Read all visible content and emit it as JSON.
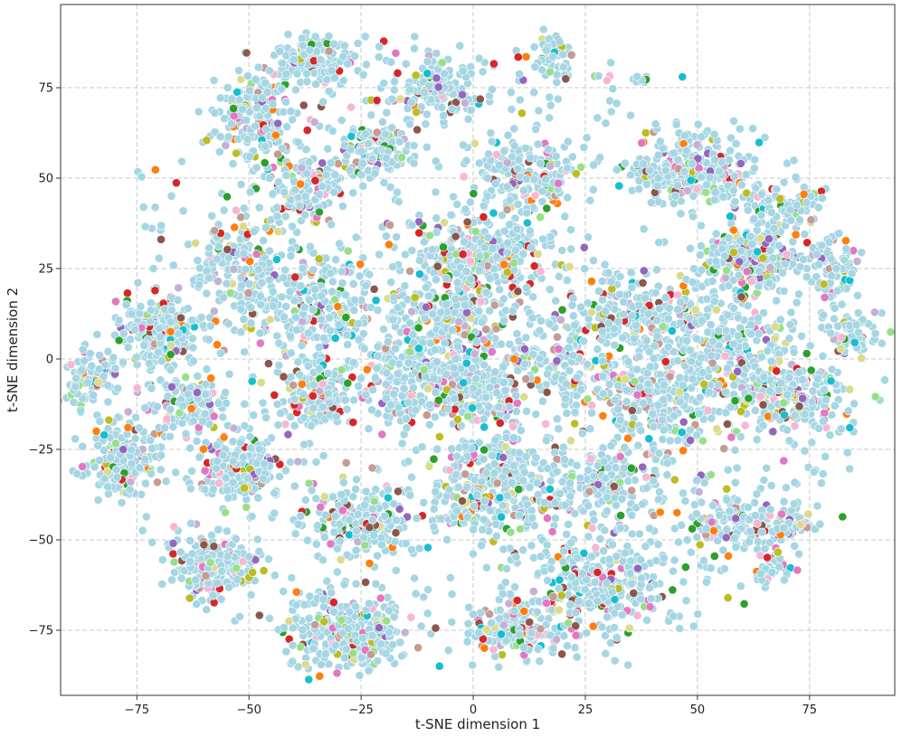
{
  "chart_data": {
    "type": "scatter",
    "title": "",
    "xlabel": "t-SNE dimension 1",
    "ylabel": "t-SNE dimension 2",
    "xlim": [
      -92,
      94
    ],
    "ylim": [
      -93,
      98
    ],
    "xticks": [
      -75,
      -50,
      -25,
      0,
      25,
      50,
      75
    ],
    "yticks": [
      -75,
      -50,
      -25,
      0,
      25,
      50,
      75
    ],
    "xtick_labels": [
      "−75",
      "−50",
      "−25",
      "0",
      "25",
      "50",
      "75"
    ],
    "ytick_labels": [
      "−75",
      "−50",
      "−25",
      "0",
      "25",
      "50",
      "75"
    ],
    "grid": true,
    "legend": "none",
    "point_color_dominant": "#a6d6e3",
    "point_edge_color": "#ffffff",
    "accent_colors": [
      "#98df8a",
      "#c5b0d5",
      "#f7b6d2",
      "#8c564b",
      "#2ca02c",
      "#d62728",
      "#17becf",
      "#e377c2",
      "#9edae5",
      "#bcbd22",
      "#ff7f0e",
      "#9467bd",
      "#dbdb8d",
      "#c49c94"
    ],
    "clusters": [
      {
        "x": -85,
        "y": -5,
        "sx": 3,
        "sy": 4,
        "n": 90
      },
      {
        "x": -78,
        "y": -28,
        "sx": 4,
        "sy": 5,
        "n": 200
      },
      {
        "x": -70,
        "y": 8,
        "sx": 5,
        "sy": 5,
        "n": 220
      },
      {
        "x": -62,
        "y": -13,
        "sx": 4,
        "sy": 4,
        "n": 120
      },
      {
        "x": -58,
        "y": -57,
        "sx": 5,
        "sy": 4,
        "n": 220
      },
      {
        "x": -52,
        "y": -30,
        "sx": 5,
        "sy": 5,
        "n": 180
      },
      {
        "x": -52,
        "y": 25,
        "sx": 6,
        "sy": 8,
        "n": 180
      },
      {
        "x": -48,
        "y": 68,
        "sx": 4,
        "sy": 6,
        "n": 160
      },
      {
        "x": -35,
        "y": 83,
        "sx": 5,
        "sy": 3,
        "n": 140
      },
      {
        "x": -38,
        "y": 48,
        "sx": 5,
        "sy": 5,
        "n": 130
      },
      {
        "x": -35,
        "y": -10,
        "sx": 4,
        "sy": 5,
        "n": 160
      },
      {
        "x": -35,
        "y": 15,
        "sx": 8,
        "sy": 7,
        "n": 250
      },
      {
        "x": -28,
        "y": -75,
        "sx": 7,
        "sy": 5,
        "n": 300
      },
      {
        "x": -25,
        "y": -45,
        "sx": 6,
        "sy": 5,
        "n": 200
      },
      {
        "x": -22,
        "y": 58,
        "sx": 5,
        "sy": 4,
        "n": 120
      },
      {
        "x": -15,
        "y": -5,
        "sx": 6,
        "sy": 6,
        "n": 180
      },
      {
        "x": -8,
        "y": 75,
        "sx": 5,
        "sy": 5,
        "n": 170
      },
      {
        "x": -5,
        "y": 10,
        "sx": 7,
        "sy": 7,
        "n": 220
      },
      {
        "x": 0,
        "y": -8,
        "sx": 6,
        "sy": 5,
        "n": 220
      },
      {
        "x": 3,
        "y": 28,
        "sx": 8,
        "sy": 6,
        "n": 320
      },
      {
        "x": 5,
        "y": -35,
        "sx": 8,
        "sy": 8,
        "n": 350
      },
      {
        "x": 10,
        "y": -75,
        "sx": 5,
        "sy": 4,
        "n": 150
      },
      {
        "x": 12,
        "y": 50,
        "sx": 6,
        "sy": 6,
        "n": 180
      },
      {
        "x": 18,
        "y": 84,
        "sx": 2,
        "sy": 3,
        "n": 50
      },
      {
        "x": 20,
        "y": 0,
        "sx": 6,
        "sy": 6,
        "n": 120
      },
      {
        "x": 28,
        "y": -62,
        "sx": 8,
        "sy": 6,
        "n": 280
      },
      {
        "x": 30,
        "y": -35,
        "sx": 6,
        "sy": 6,
        "n": 160
      },
      {
        "x": 35,
        "y": 12,
        "sx": 7,
        "sy": 6,
        "n": 220
      },
      {
        "x": 37,
        "y": 77,
        "sx": 1,
        "sy": 1,
        "n": 12
      },
      {
        "x": 40,
        "y": -12,
        "sx": 8,
        "sy": 7,
        "n": 250
      },
      {
        "x": 48,
        "y": 52,
        "sx": 7,
        "sy": 5,
        "n": 300
      },
      {
        "x": 55,
        "y": 5,
        "sx": 8,
        "sy": 8,
        "n": 280
      },
      {
        "x": 58,
        "y": -45,
        "sx": 5,
        "sy": 5,
        "n": 120
      },
      {
        "x": 62,
        "y": 28,
        "sx": 6,
        "sy": 5,
        "n": 200
      },
      {
        "x": 66,
        "y": -58,
        "sx": 2,
        "sy": 3,
        "n": 40
      },
      {
        "x": 70,
        "y": -10,
        "sx": 7,
        "sy": 6,
        "n": 220
      },
      {
        "x": 70,
        "y": 42,
        "sx": 4,
        "sy": 3,
        "n": 80
      },
      {
        "x": 70,
        "y": -45,
        "sx": 3,
        "sy": 3,
        "n": 60
      },
      {
        "x": 80,
        "y": 25,
        "sx": 3,
        "sy": 4,
        "n": 70
      },
      {
        "x": 85,
        "y": 7,
        "sx": 3,
        "sy": 3,
        "n": 60
      }
    ],
    "background_scatter": {
      "x": [
        -75,
        85
      ],
      "y": [
        -85,
        88
      ],
      "n": 900
    }
  }
}
